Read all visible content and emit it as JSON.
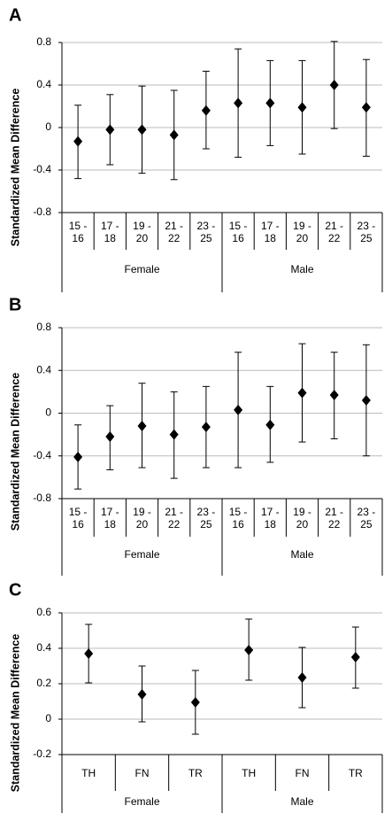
{
  "chart_data": [
    {
      "type": "errorbar",
      "title": "A",
      "y_label": "Standardized Mean Difference",
      "color": "#000000",
      "grid": true,
      "categories": [
        "15 - 16",
        "17 - 18",
        "19 - 20",
        "21 - 22",
        "23 - 25",
        "15 - 16",
        "17 - 18",
        "19 - 20",
        "21 - 22",
        "23 - 25"
      ],
      "groups": [
        "Female",
        "Male"
      ],
      "values": [
        -0.13,
        -0.02,
        -0.02,
        -0.07,
        0.16,
        0.23,
        0.23,
        0.19,
        0.4,
        0.19
      ],
      "lower": [
        -0.48,
        -0.35,
        -0.43,
        -0.49,
        -0.2,
        -0.28,
        -0.17,
        -0.25,
        -0.01,
        -0.27
      ],
      "upper": [
        0.21,
        0.31,
        0.39,
        0.35,
        0.53,
        0.74,
        0.63,
        0.63,
        0.81,
        0.64
      ],
      "ylim": [
        -0.8,
        0.8
      ],
      "yticks": [
        -0.8,
        -0.4,
        0,
        0.4,
        0.8
      ]
    },
    {
      "type": "errorbar",
      "title": "B",
      "y_label": "Standardized Mean Difference",
      "color": "#000000",
      "grid": true,
      "categories": [
        "15 - 16",
        "17 - 18",
        "19 - 20",
        "21 - 22",
        "23 - 25",
        "15 - 16",
        "17 - 18",
        "19 - 20",
        "21 - 22",
        "23 - 25"
      ],
      "groups": [
        "Female",
        "Male"
      ],
      "values": [
        -0.41,
        -0.22,
        -0.12,
        -0.2,
        -0.13,
        0.03,
        -0.11,
        0.19,
        0.17,
        0.12
      ],
      "lower": [
        -0.71,
        -0.53,
        -0.51,
        -0.61,
        -0.51,
        -0.51,
        -0.46,
        -0.27,
        -0.24,
        -0.4
      ],
      "upper": [
        -0.11,
        0.07,
        0.28,
        0.2,
        0.25,
        0.57,
        0.25,
        0.65,
        0.57,
        0.64
      ],
      "ylim": [
        -0.8,
        0.8
      ],
      "yticks": [
        -0.8,
        -0.4,
        0,
        0.4,
        0.8
      ]
    },
    {
      "type": "errorbar",
      "title": "C",
      "y_label": "Standardized Mean Difference",
      "color": "#000000",
      "grid": true,
      "categories": [
        "TH",
        "FN",
        "TR",
        "TH",
        "FN",
        "TR"
      ],
      "groups": [
        "Female",
        "Male"
      ],
      "values": [
        0.37,
        0.14,
        0.095,
        0.39,
        0.235,
        0.35
      ],
      "lower": [
        0.205,
        -0.015,
        -0.085,
        0.22,
        0.065,
        0.175
      ],
      "upper": [
        0.535,
        0.3,
        0.275,
        0.565,
        0.405,
        0.52
      ],
      "ylim": [
        -0.2,
        0.6
      ],
      "yticks": [
        -0.2,
        0,
        0.2,
        0.4,
        0.6
      ]
    }
  ]
}
